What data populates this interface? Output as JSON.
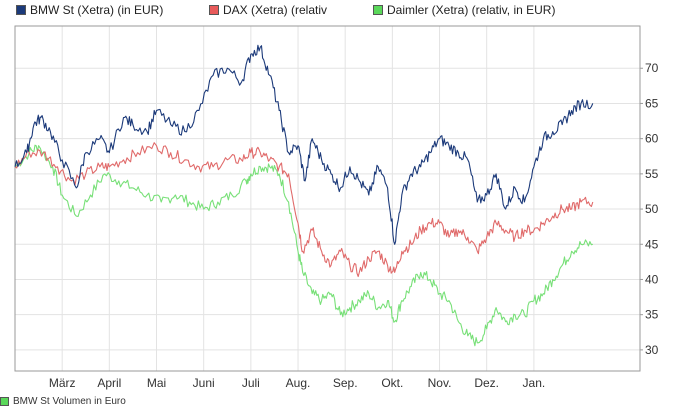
{
  "chart_data": {
    "type": "line",
    "title": "",
    "xlabel": "",
    "ylabel": "",
    "ylim": [
      27,
      76
    ],
    "y_ticks": [
      30,
      35,
      40,
      45,
      50,
      55,
      60,
      65,
      70
    ],
    "x_ticks": [
      "März",
      "April",
      "Mai",
      "Juni",
      "Juli",
      "Aug.",
      "Sep.",
      "Okt.",
      "Nov.",
      "Dez.",
      "Jan."
    ],
    "x_range": [
      0,
      13.25
    ],
    "x_tick_positions": [
      1,
      2,
      3,
      4,
      5,
      6,
      7,
      8,
      9,
      10,
      11
    ],
    "grid": true,
    "legend_position": "top",
    "series": [
      {
        "name": "BMW St (Xetra) (in EUR)",
        "color": "#1c3a7a",
        "swatch": "#1c3a7a",
        "x": [
          0.0,
          0.25,
          0.4,
          0.55,
          0.75,
          1.0,
          1.3,
          1.5,
          1.8,
          2.0,
          2.3,
          2.5,
          2.8,
          3.0,
          3.3,
          3.6,
          3.9,
          4.2,
          4.5,
          4.8,
          5.0,
          5.2,
          5.4,
          5.6,
          5.8,
          6.0,
          6.15,
          6.3,
          6.5,
          6.7,
          6.9,
          7.1,
          7.3,
          7.5,
          7.7,
          7.9,
          8.05,
          8.2,
          8.4,
          8.6,
          8.8,
          9.0,
          9.2,
          9.4,
          9.6,
          9.8,
          10.0,
          10.2,
          10.4,
          10.6,
          10.8,
          11.0,
          11.2,
          11.4,
          11.6,
          11.8,
          12.0,
          12.25
        ],
        "y": [
          56,
          58,
          62,
          63,
          61,
          57,
          53,
          58,
          60,
          58,
          63,
          62,
          61,
          64,
          62,
          61,
          64,
          69,
          70,
          68,
          72,
          73,
          69,
          64,
          58,
          59,
          54,
          60,
          57,
          55,
          53,
          56,
          54,
          52,
          56,
          53,
          45,
          52,
          55,
          56,
          58,
          60,
          59,
          58,
          57,
          51,
          52,
          55,
          50,
          53,
          51,
          56,
          60,
          61,
          62,
          64,
          65,
          65
        ]
      },
      {
        "name": "DAX (Xetra) (relativ",
        "color": "#e06a6a",
        "swatch": "#e85a5a",
        "x": [
          0.0,
          0.3,
          0.6,
          0.9,
          1.2,
          1.5,
          1.8,
          2.0,
          2.3,
          2.6,
          3.0,
          3.3,
          3.6,
          3.9,
          4.2,
          4.5,
          4.8,
          5.0,
          5.2,
          5.4,
          5.6,
          5.8,
          6.0,
          6.1,
          6.3,
          6.5,
          6.7,
          6.9,
          7.1,
          7.3,
          7.5,
          7.7,
          7.9,
          8.05,
          8.2,
          8.4,
          8.6,
          8.8,
          9.0,
          9.2,
          9.4,
          9.6,
          9.8,
          10.0,
          10.2,
          10.4,
          10.6,
          10.8,
          11.0,
          11.2,
          11.4,
          11.6,
          11.8,
          12.0,
          12.25
        ],
        "y": [
          56,
          58,
          58,
          56,
          54,
          55,
          56,
          56,
          57,
          58,
          59,
          58,
          57,
          56,
          56,
          57,
          57,
          58,
          58,
          57,
          56,
          55,
          48,
          44,
          47,
          44,
          42,
          44,
          42,
          41,
          43,
          44,
          42,
          41,
          44,
          45,
          47,
          48,
          48,
          46,
          47,
          46,
          44,
          46,
          48,
          47,
          46,
          47,
          47,
          48,
          49,
          50,
          50,
          51,
          51
        ]
      },
      {
        "name": "Daimler (Xetra) (relativ, in EUR)",
        "color": "#78e078",
        "swatch": "#5ad85a",
        "x": [
          0.0,
          0.3,
          0.5,
          0.8,
          1.0,
          1.3,
          1.6,
          1.9,
          2.2,
          2.5,
          2.8,
          3.1,
          3.4,
          3.7,
          4.0,
          4.3,
          4.6,
          4.9,
          5.0,
          5.2,
          5.4,
          5.6,
          5.8,
          6.0,
          6.1,
          6.3,
          6.5,
          6.7,
          6.9,
          7.1,
          7.3,
          7.5,
          7.7,
          7.9,
          8.05,
          8.2,
          8.4,
          8.6,
          8.8,
          9.0,
          9.2,
          9.4,
          9.6,
          9.8,
          10.0,
          10.2,
          10.4,
          10.6,
          10.8,
          11.0,
          11.2,
          11.4,
          11.6,
          11.8,
          12.0,
          12.25
        ],
        "y": [
          56,
          58,
          59,
          56,
          52,
          49,
          52,
          55,
          54,
          53,
          52,
          51,
          52,
          51,
          50,
          51,
          52,
          54,
          55,
          56,
          56,
          55,
          51,
          44,
          41,
          38,
          37,
          38,
          35,
          36,
          37,
          38,
          36,
          37,
          34,
          37,
          39,
          41,
          40,
          38,
          37,
          34,
          32,
          31,
          33,
          36,
          34,
          35,
          35,
          37,
          38,
          40,
          42,
          44,
          45,
          45
        ]
      }
    ]
  },
  "footer": {
    "text": "BMW St Volumen in Euro",
    "swatch": "#5ad85a"
  }
}
